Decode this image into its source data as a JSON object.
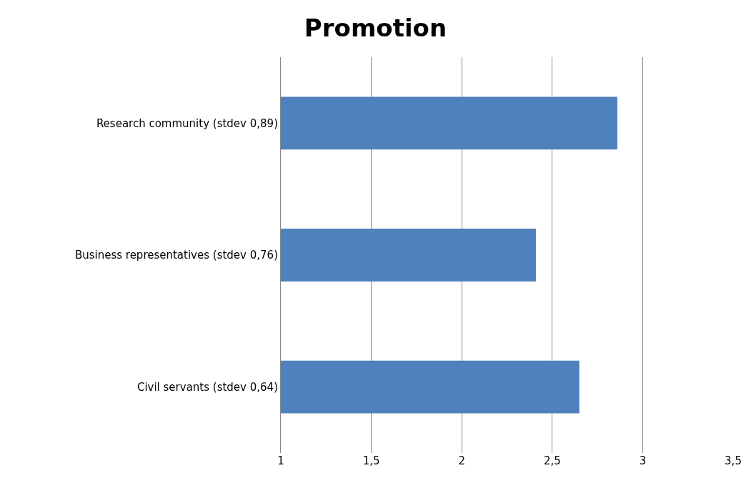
{
  "chart_data": {
    "type": "bar",
    "title": "Promotion",
    "orientation": "horizontal",
    "categories": [
      "Research community (stdev 0,89)",
      "Business representatives (stdev 0,76)",
      "Civil servants (stdev 0,64)"
    ],
    "values": [
      2.86,
      2.41,
      2.65
    ],
    "color": "#4f81bd",
    "xlim": [
      1,
      3.5
    ],
    "xticks": [
      1,
      {
        "value": 1.5,
        "label": "1,5"
      },
      2,
      {
        "value": 2.5,
        "label": "2,5"
      },
      3,
      {
        "value": 3.5,
        "label": "3,5"
      }
    ],
    "grid": "x"
  }
}
